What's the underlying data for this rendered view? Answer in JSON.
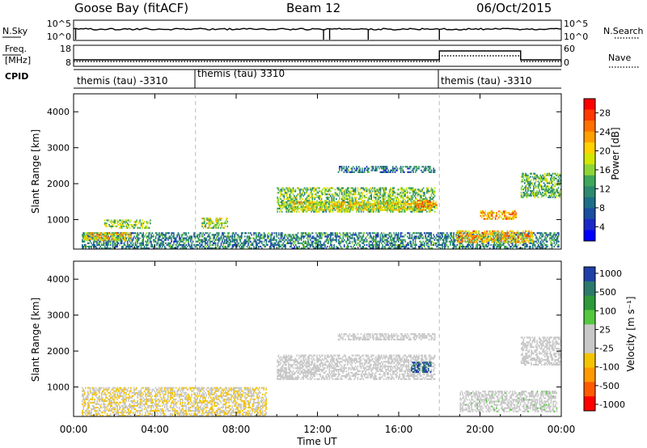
{
  "header": {
    "station": "Goose Bay (fitACF)",
    "beam": "Beam 12",
    "date": "06/Oct/2015"
  },
  "noise_panel": {
    "left_label": "N.Sky",
    "right_label": "N.Search",
    "left_ticks": [
      "10^5",
      "10^0"
    ],
    "right_ticks": [
      "10^5",
      "10^0"
    ]
  },
  "freq_panel": {
    "left_label_1": "Freq.",
    "left_label_2": "[MHz]",
    "right_label": "Nave",
    "left_ticks": [
      "18",
      "8"
    ],
    "right_ticks": [
      "60",
      "0"
    ]
  },
  "cpid": {
    "label": "CPID",
    "segments": [
      {
        "label": "themis (tau) -3310",
        "start_hour": 1.0
      },
      {
        "label": "themis (tau) 3310",
        "start_hour": 6.0
      },
      {
        "label": "themis (tau) -3310",
        "start_hour": 18.0
      }
    ]
  },
  "axes": {
    "xlabel": "Time UT",
    "x_ticks": [
      "00:00",
      "04:00",
      "08:00",
      "12:00",
      "16:00",
      "20:00",
      "00:00"
    ],
    "ylabel": "Slant Range [km]",
    "y_ticks": [
      "1000",
      "2000",
      "3000",
      "4000"
    ]
  },
  "colorbars": {
    "power": {
      "label": "Power [dB]",
      "ticks": [
        "28",
        "24",
        "20",
        "16",
        "12",
        "8",
        "4"
      ],
      "colors": [
        "#ff0000",
        "#ff3a00",
        "#ff7000",
        "#ffa000",
        "#ffd200",
        "#d2e800",
        "#8ed635",
        "#3fa85a",
        "#2c8a6e",
        "#1d6e88",
        "#1a4ea0",
        "#1a28c8",
        "#0000ff"
      ]
    },
    "velocity": {
      "label": "Velocity [m s⁻¹]",
      "ticks": [
        "1000",
        "500",
        "100",
        "25",
        "-25",
        "-100",
        "-500",
        "-1000"
      ],
      "colors": [
        "#1f3fa8",
        "#2c7a6c",
        "#2e9a3a",
        "#55c840",
        "#c8c8c8",
        "#c8c8c8",
        "#f5c400",
        "#ff9a00",
        "#ff5a00",
        "#ff0000"
      ]
    }
  },
  "chart_data": [
    {
      "type": "heatmap",
      "title": "",
      "xlabel": "Time UT",
      "ylabel": "Slant Range [km]",
      "xlim_hours": [
        0,
        24
      ],
      "ylim_km": [
        180,
        4500
      ],
      "colorbar_label": "Power [dB]",
      "colorbar_range": [
        0,
        30
      ],
      "regions": [
        {
          "t_start": 0.4,
          "t_end": 23.9,
          "r_min": 180,
          "r_max": 650,
          "mean": 9
        },
        {
          "t_start": 0.5,
          "t_end": 2.8,
          "r_min": 400,
          "r_max": 650,
          "mean": 19
        },
        {
          "t_start": 1.5,
          "t_end": 3.8,
          "r_min": 750,
          "r_max": 1000,
          "mean": 15
        },
        {
          "t_start": 6.3,
          "t_end": 7.6,
          "r_min": 750,
          "r_max": 1050,
          "mean": 17
        },
        {
          "t_start": 10.0,
          "t_end": 17.8,
          "r_min": 1200,
          "r_max": 1900,
          "mean": 14
        },
        {
          "t_start": 10.6,
          "t_end": 17.7,
          "r_min": 1250,
          "r_max": 1500,
          "mean": 18
        },
        {
          "t_start": 16.8,
          "t_end": 17.9,
          "r_min": 1300,
          "r_max": 1550,
          "mean": 23
        },
        {
          "t_start": 13.0,
          "t_end": 17.8,
          "r_min": 2300,
          "r_max": 2500,
          "mean": 8
        },
        {
          "t_start": 20.0,
          "t_end": 21.8,
          "r_min": 1000,
          "r_max": 1250,
          "mean": 22
        },
        {
          "t_start": 18.8,
          "t_end": 22.6,
          "r_min": 350,
          "r_max": 700,
          "mean": 21
        },
        {
          "t_start": 22.0,
          "t_end": 24.0,
          "r_min": 1600,
          "r_max": 2300,
          "mean": 13
        }
      ]
    },
    {
      "type": "heatmap",
      "title": "",
      "xlabel": "Time UT",
      "ylabel": "Slant Range [km]",
      "xlim_hours": [
        0,
        24
      ],
      "ylim_km": [
        180,
        4500
      ],
      "colorbar_label": "Velocity [m s⁻¹]",
      "colorbar_range": [
        -1000,
        1000
      ],
      "regions": [
        {
          "t_start": 10.0,
          "t_end": 17.8,
          "r_min": 1200,
          "r_max": 1900,
          "mean": 0
        },
        {
          "t_start": 13.0,
          "t_end": 17.8,
          "r_min": 2300,
          "r_max": 2500,
          "mean": 0
        },
        {
          "t_start": 16.6,
          "t_end": 17.6,
          "r_min": 1400,
          "r_max": 1700,
          "mean": 900
        },
        {
          "t_start": 0.4,
          "t_end": 9.5,
          "r_min": 180,
          "r_max": 1000,
          "mean": -200
        },
        {
          "t_start": 19.0,
          "t_end": 23.8,
          "r_min": 300,
          "r_max": 900,
          "mean": 100
        },
        {
          "t_start": 22.0,
          "t_end": 24.0,
          "r_min": 1600,
          "r_max": 2400,
          "mean": 0
        }
      ]
    }
  ]
}
